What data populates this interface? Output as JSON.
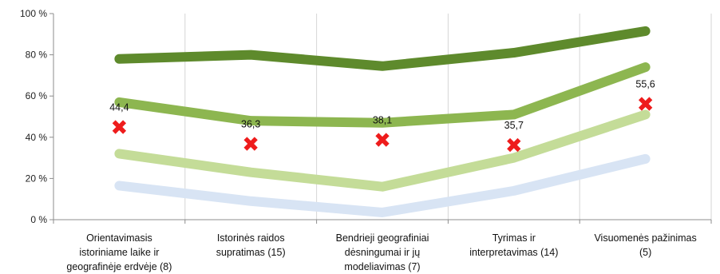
{
  "chart_data": {
    "type": "line",
    "categories": [
      [
        "Orientavimasis",
        "istoriniame laike ir",
        "geografinėje erdvėje (8)"
      ],
      [
        "Istorinės raidos",
        "supratimas (15)"
      ],
      [
        "Bendrieji geografiniai",
        "dėsningumai ir jų",
        "modeliavimas (7)"
      ],
      [
        "Tyrimas ir",
        "interpretavimas (14)"
      ],
      [
        "Visuomenės pažinimas",
        "(5)"
      ]
    ],
    "y_ticks": [
      "0 %",
      "20 %",
      "40 %",
      "60 %",
      "80 %",
      "100 %"
    ],
    "ylim": [
      0,
      100
    ],
    "grid": "vertical category separators",
    "series": [
      {
        "values": [
          78,
          80,
          74.5,
          81,
          91.5
        ],
        "color": "#5e8a2c"
      },
      {
        "values": [
          57,
          48,
          47,
          51,
          74
        ],
        "color": "#8db650"
      },
      {
        "values": [
          32,
          23,
          16,
          30,
          51
        ],
        "color": "#c4dc98"
      },
      {
        "values": [
          16.5,
          9,
          3.5,
          14,
          29.5
        ],
        "color": "#d8e4f4"
      }
    ],
    "markers": {
      "symbol": "✖",
      "color": "#ee1c1c",
      "values": [
        44.4,
        36.3,
        38.1,
        35.7,
        55.6
      ],
      "labels": [
        "44,4",
        "36,3",
        "38,1",
        "35,7",
        "55,6"
      ]
    }
  }
}
